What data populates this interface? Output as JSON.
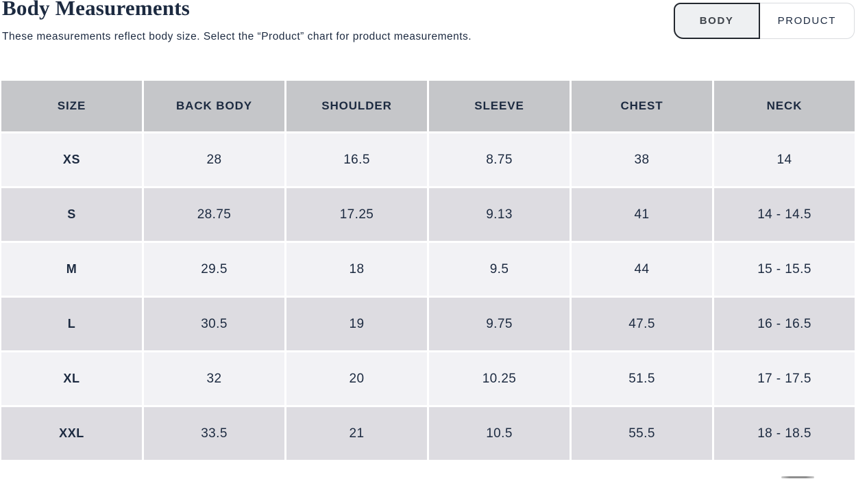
{
  "page": {
    "title": "Body Measurements",
    "subtitle": "These measurements reflect body size. Select the “Product” chart for product measurements."
  },
  "toggle": {
    "body_label": "BODY",
    "product_label": "PRODUCT",
    "selected": "BODY"
  },
  "table": {
    "headers": [
      "SIZE",
      "BACK BODY",
      "SHOULDER",
      "SLEEVE",
      "CHEST",
      "NECK"
    ],
    "rows": [
      {
        "cells": [
          "XS",
          "28",
          "16.5",
          "8.75",
          "38",
          "14"
        ]
      },
      {
        "cells": [
          "S",
          "28.75",
          "17.25",
          "9.13",
          "41",
          "14 - 14.5"
        ]
      },
      {
        "cells": [
          "M",
          "29.5",
          "18",
          "9.5",
          "44",
          "15 - 15.5"
        ]
      },
      {
        "cells": [
          "L",
          "30.5",
          "19",
          "9.75",
          "47.5",
          "16 - 16.5"
        ]
      },
      {
        "cells": [
          "XL",
          "32",
          "20",
          "10.25",
          "51.5",
          "17 - 17.5"
        ]
      },
      {
        "cells": [
          "XXL",
          "33.5",
          "21",
          "10.5",
          "55.5",
          "18 - 18.5"
        ]
      }
    ]
  },
  "colors": {
    "navy": "#1c2a40",
    "header_bg": "#c5c6c9",
    "row_light": "#f2f2f5",
    "row_dark": "#dddce1",
    "selected_border": "#22272e",
    "unselected_border": "#d9dbde",
    "selected_bg": "#eef0f2"
  }
}
